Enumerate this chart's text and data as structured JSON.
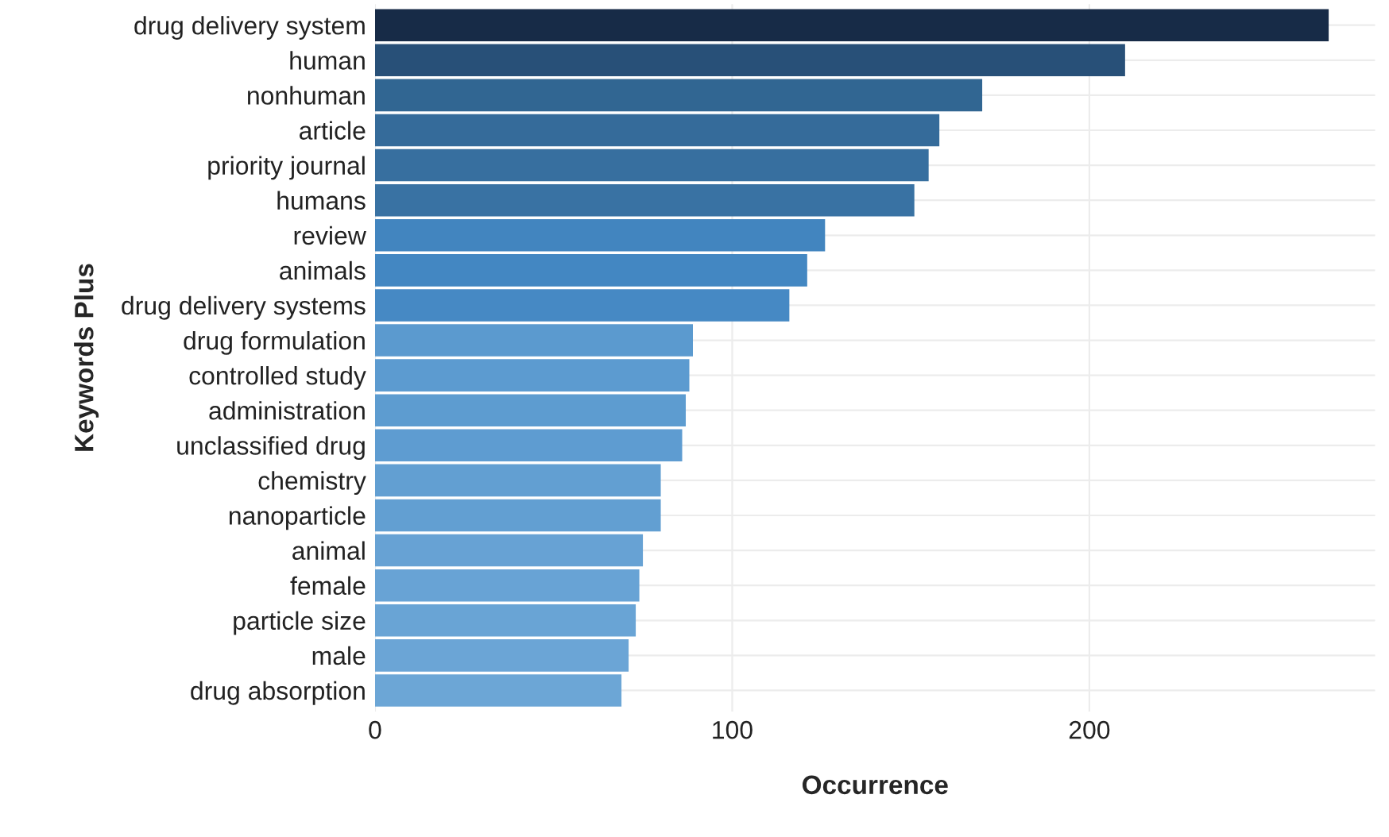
{
  "chart_data": {
    "type": "bar",
    "orientation": "horizontal",
    "xlabel": "Occurrence",
    "ylabel": "Keywords Plus",
    "categories": [
      "drug delivery system",
      "human",
      "nonhuman",
      "article",
      "priority journal",
      "humans",
      "review",
      "animals",
      "drug delivery systems",
      "drug formulation",
      "controlled study",
      "administration",
      "unclassified drug",
      "chemistry",
      "nanoparticle",
      "animal",
      "female",
      "particle size",
      "male",
      "drug absorption"
    ],
    "values": [
      267,
      210,
      170,
      158,
      155,
      151,
      126,
      121,
      116,
      89,
      88,
      87,
      86,
      80,
      80,
      75,
      74,
      73,
      71,
      69
    ],
    "colors": [
      "#172b47",
      "#285078",
      "#316692",
      "#356b9a",
      "#376f9f",
      "#3972a3",
      "#4285bf",
      "#4387c2",
      "#4689c4",
      "#5b9acf",
      "#5c9bd0",
      "#5d9cd0",
      "#5e9cd1",
      "#629fd2",
      "#629fd2",
      "#67a2d4",
      "#68a3d5",
      "#69a4d5",
      "#6ba5d6",
      "#6ca6d6"
    ],
    "xlim": [
      0,
      280
    ],
    "xticks": [
      0,
      100,
      200
    ],
    "grid": true,
    "legend": false
  }
}
